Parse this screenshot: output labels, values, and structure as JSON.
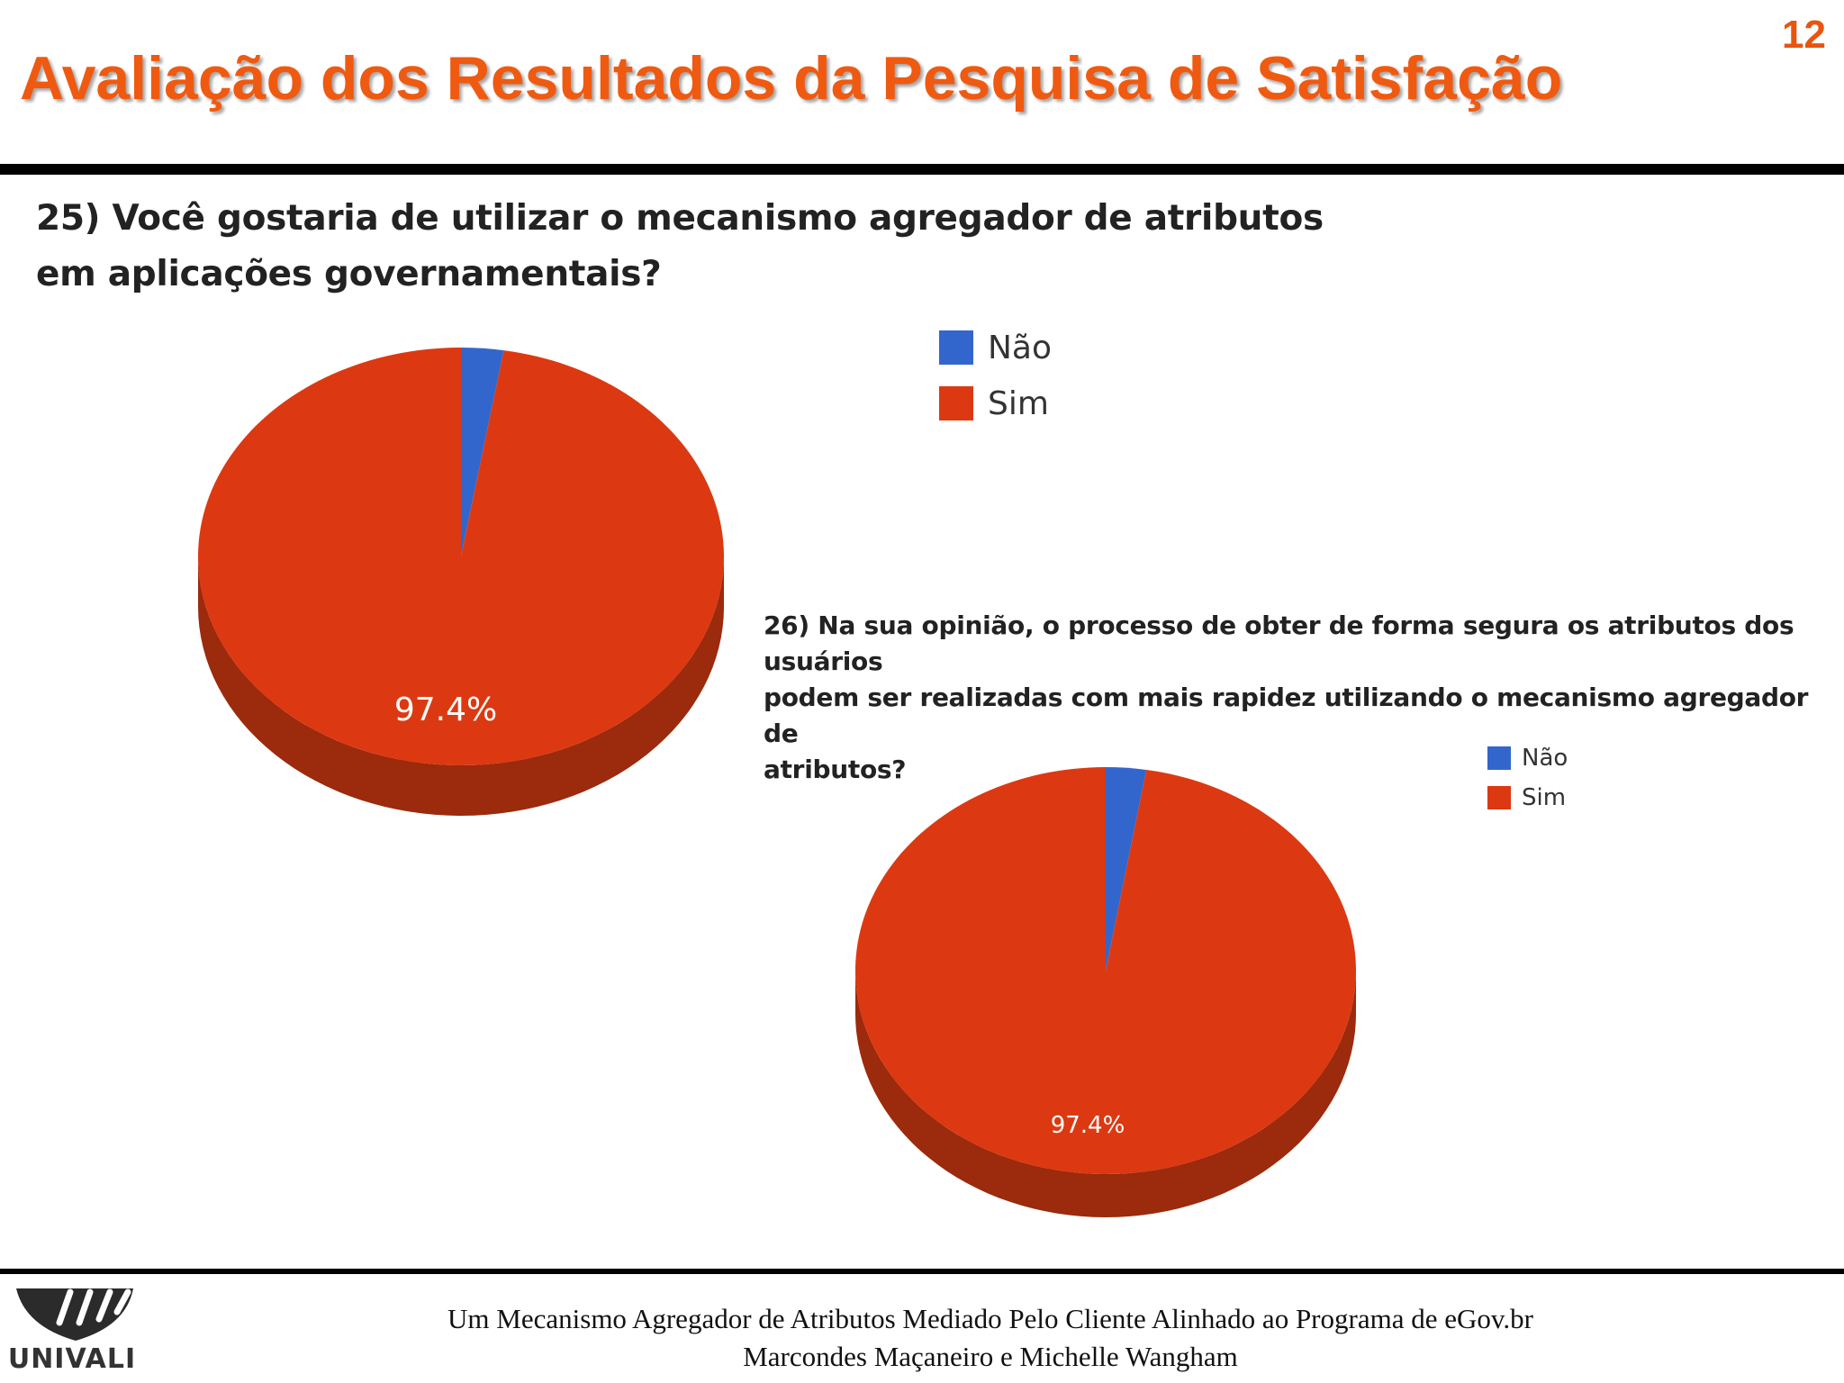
{
  "slide": {
    "number": "12",
    "title": "Avaliação dos Resultados da Pesquisa de Satisfação",
    "footer_line1": "Um Mecanismo Agregador de Atributos Mediado Pelo Cliente Alinhado ao Programa de eGov.br",
    "footer_line2": "Marcondes Maçaneiro e Michelle Wangham",
    "logo_text": "UNIVALI"
  },
  "colors": {
    "title": "#ef5a10",
    "nao": "#3366cc",
    "sim": "#dc3912",
    "sim_side": "#9c2a0c"
  },
  "chart_data": [
    {
      "type": "pie",
      "title_lines": [
        "25) Você gostaria de utilizar o mecanismo agregador de atributos",
        "em aplicações governamentais?"
      ],
      "legend": [
        "Não",
        "Sim"
      ],
      "legend_position": "top-right",
      "slices": [
        {
          "label": "Não",
          "value": 2.6,
          "color": "#3366cc"
        },
        {
          "label": "Sim",
          "value": 97.4,
          "color": "#dc3912"
        }
      ],
      "data_label": "97.4%"
    },
    {
      "type": "pie",
      "title_lines": [
        "26) Na sua opinião, o processo de obter de forma segura os atributos dos usuários",
        "podem ser realizadas com mais rapidez utilizando o mecanismo agregador de",
        "atributos?"
      ],
      "legend": [
        "Não",
        "Sim"
      ],
      "legend_position": "top-right",
      "slices": [
        {
          "label": "Não",
          "value": 2.6,
          "color": "#3366cc"
        },
        {
          "label": "Sim",
          "value": 97.4,
          "color": "#dc3912"
        }
      ],
      "data_label": "97.4%"
    }
  ]
}
